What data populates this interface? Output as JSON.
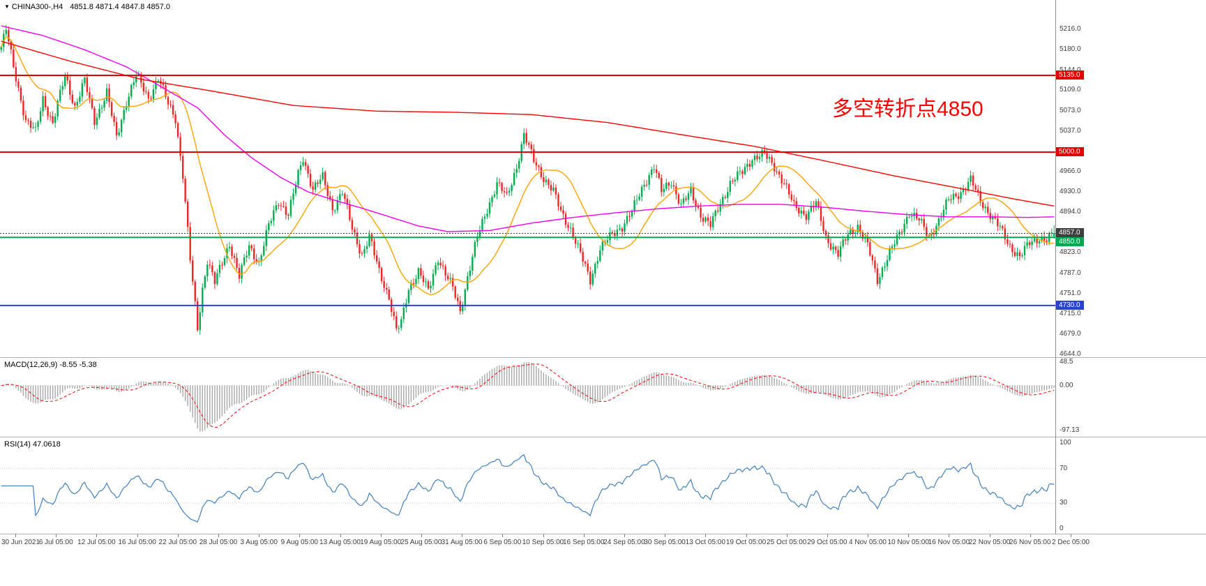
{
  "header": {
    "marker": "▼",
    "symbol": "CHINA300-,H4",
    "ohlc": "4851.8 4871.4 4847.8 4857.0"
  },
  "annotation": {
    "text": "多空转折点4850",
    "color": "#ff0000"
  },
  "price_axis": {
    "labels": [
      "5216.0",
      "5180.0",
      "5144.0",
      "5109.0",
      "5073.0",
      "5037.0",
      "4966.0",
      "4930.0",
      "4894.0",
      "4823.0",
      "4787.0",
      "4751.0",
      "4715.0",
      "4679.0",
      "4644.0"
    ]
  },
  "time_axis": {
    "labels": [
      "30 Jun 2021",
      "6 Jul 05:00",
      "12 Jul 05:00",
      "16 Jul 05:00",
      "22 Jul 05:00",
      "28 Jul 05:00",
      "3 Aug 05:00",
      "9 Aug 05:00",
      "13 Aug 05:00",
      "19 Aug 05:00",
      "25 Aug 05:00",
      "31 Aug 05:00",
      "6 Sep 05:00",
      "10 Sep 05:00",
      "16 Sep 05:00",
      "24 Sep 05:00",
      "30 Sep 05:00",
      "13 Oct 05:00",
      "19 Oct 05:00",
      "25 Oct 05:00",
      "29 Oct 05:00",
      "4 Nov 05:00",
      "10 Nov 05:00",
      "16 Nov 05:00",
      "22 Nov 05:00",
      "26 Nov 05:00",
      "2 Dec 05:00"
    ]
  },
  "macd": {
    "label": "MACD(12,26,9)",
    "values_text": "-8.55 -5.38",
    "axis": [
      "48.5",
      "0.00",
      "-97.13"
    ],
    "range": {
      "max": 48.5,
      "min": -97.13
    },
    "histogram_color": "#a8a8a8",
    "signal_color": "#ff0000"
  },
  "rsi": {
    "label": "RSI(14)",
    "value_text": "47.0618",
    "axis": [
      "100",
      "70",
      "30",
      "0"
    ],
    "levels": [
      70,
      30
    ],
    "color": "#4080c0"
  },
  "chart_data": {
    "type": "candlestick",
    "symbol": "CHINA300-",
    "timeframe": "H4",
    "title": "CHINA300-,H4",
    "x_range": [
      "30 Jun 2021",
      "2 Dec 05:00"
    ],
    "y_range": [
      4644,
      5216
    ],
    "candle_count": 430,
    "wiggle": 6,
    "last_close": 4857.0,
    "current_bar": {
      "open": 4851.8,
      "high": 4871.4,
      "low": 4847.8,
      "close": 4857.0
    },
    "up_color": "#00ad4e",
    "down_color": "#ee2524",
    "close_anchors": [
      [
        0,
        5185
      ],
      [
        2,
        5215
      ],
      [
        5,
        5150
      ],
      [
        10,
        5055
      ],
      [
        14,
        5035
      ],
      [
        17,
        5095
      ],
      [
        21,
        5050
      ],
      [
        26,
        5135
      ],
      [
        30,
        5080
      ],
      [
        34,
        5125
      ],
      [
        38,
        5055
      ],
      [
        43,
        5105
      ],
      [
        47,
        5025
      ],
      [
        51,
        5090
      ],
      [
        55,
        5135
      ],
      [
        60,
        5095
      ],
      [
        64,
        5130
      ],
      [
        68,
        5085
      ],
      [
        71,
        5060
      ],
      [
        74,
        4960
      ],
      [
        77,
        4810
      ],
      [
        80,
        4690
      ],
      [
        82,
        4760
      ],
      [
        84,
        4810
      ],
      [
        87,
        4770
      ],
      [
        90,
        4805
      ],
      [
        93,
        4840
      ],
      [
        97,
        4780
      ],
      [
        101,
        4835
      ],
      [
        105,
        4805
      ],
      [
        109,
        4870
      ],
      [
        113,
        4915
      ],
      [
        117,
        4890
      ],
      [
        121,
        4960
      ],
      [
        123,
        4990
      ],
      [
        127,
        4935
      ],
      [
        131,
        4955
      ],
      [
        135,
        4900
      ],
      [
        139,
        4930
      ],
      [
        143,
        4865
      ],
      [
        147,
        4820
      ],
      [
        150,
        4850
      ],
      [
        154,
        4790
      ],
      [
        158,
        4745
      ],
      [
        161,
        4685
      ],
      [
        163,
        4700
      ],
      [
        166,
        4760
      ],
      [
        170,
        4790
      ],
      [
        174,
        4755
      ],
      [
        178,
        4815
      ],
      [
        181,
        4785
      ],
      [
        184,
        4760
      ],
      [
        187,
        4720
      ],
      [
        190,
        4780
      ],
      [
        194,
        4850
      ],
      [
        198,
        4900
      ],
      [
        202,
        4945
      ],
      [
        206,
        4920
      ],
      [
        210,
        4975
      ],
      [
        213,
        5030
      ],
      [
        217,
        4985
      ],
      [
        221,
        4955
      ],
      [
        225,
        4930
      ],
      [
        228,
        4895
      ],
      [
        232,
        4865
      ],
      [
        236,
        4820
      ],
      [
        240,
        4775
      ],
      [
        244,
        4830
      ],
      [
        249,
        4855
      ],
      [
        253,
        4870
      ],
      [
        257,
        4895
      ],
      [
        262,
        4945
      ],
      [
        266,
        4975
      ],
      [
        269,
        4930
      ],
      [
        273,
        4950
      ],
      [
        277,
        4905
      ],
      [
        281,
        4930
      ],
      [
        285,
        4890
      ],
      [
        289,
        4870
      ],
      [
        293,
        4910
      ],
      [
        297,
        4945
      ],
      [
        302,
        4965
      ],
      [
        306,
        4990
      ],
      [
        311,
        4995
      ],
      [
        315,
        4975
      ],
      [
        319,
        4945
      ],
      [
        323,
        4905
      ],
      [
        328,
        4890
      ],
      [
        332,
        4910
      ],
      [
        336,
        4850
      ],
      [
        341,
        4820
      ],
      [
        345,
        4855
      ],
      [
        349,
        4870
      ],
      [
        353,
        4835
      ],
      [
        357,
        4775
      ],
      [
        361,
        4815
      ],
      [
        366,
        4855
      ],
      [
        370,
        4895
      ],
      [
        374,
        4880
      ],
      [
        378,
        4850
      ],
      [
        382,
        4880
      ],
      [
        386,
        4915
      ],
      [
        391,
        4930
      ],
      [
        395,
        4950
      ],
      [
        399,
        4915
      ],
      [
        403,
        4890
      ],
      [
        407,
        4865
      ],
      [
        411,
        4835
      ],
      [
        415,
        4815
      ],
      [
        419,
        4840
      ],
      [
        423,
        4850
      ],
      [
        426,
        4845
      ],
      [
        429,
        4857
      ]
    ],
    "overlays": [
      {
        "name": "ma-fast",
        "color": "#ffa200",
        "type": "sma",
        "period": 21
      },
      {
        "name": "ma-mid",
        "color": "#f000f0",
        "type": "path",
        "anchors": [
          [
            0,
            5222
          ],
          [
            17,
            5205
          ],
          [
            34,
            5180
          ],
          [
            51,
            5150
          ],
          [
            68,
            5108
          ],
          [
            80,
            5078
          ],
          [
            91,
            5030
          ],
          [
            102,
            4990
          ],
          [
            114,
            4955
          ],
          [
            125,
            4930
          ],
          [
            136,
            4915
          ],
          [
            148,
            4900
          ],
          [
            159,
            4885
          ],
          [
            170,
            4870
          ],
          [
            182,
            4860
          ],
          [
            199,
            4862
          ],
          [
            216,
            4875
          ],
          [
            233,
            4885
          ],
          [
            250,
            4893
          ],
          [
            267,
            4900
          ],
          [
            284,
            4905
          ],
          [
            301,
            4908
          ],
          [
            318,
            4908
          ],
          [
            335,
            4903
          ],
          [
            352,
            4896
          ],
          [
            369,
            4890
          ],
          [
            386,
            4886
          ],
          [
            403,
            4886
          ],
          [
            418,
            4885
          ],
          [
            429,
            4886
          ]
        ]
      },
      {
        "name": "ma-slow",
        "color": "#ff0000",
        "type": "path",
        "anchors": [
          [
            0,
            5195
          ],
          [
            28,
            5160
          ],
          [
            57,
            5128
          ],
          [
            85,
            5108
          ],
          [
            119,
            5082
          ],
          [
            153,
            5072
          ],
          [
            185,
            5070
          ],
          [
            216,
            5066
          ],
          [
            247,
            5052
          ],
          [
            278,
            5030
          ],
          [
            307,
            5010
          ],
          [
            335,
            4985
          ],
          [
            364,
            4958
          ],
          [
            392,
            4935
          ],
          [
            412,
            4918
          ],
          [
            429,
            4905
          ]
        ]
      }
    ],
    "hlines": [
      {
        "price": 5135.0,
        "label": "5135.0",
        "color": "#e00000",
        "width": 2
      },
      {
        "price": 5000.0,
        "label": "5000.0",
        "color": "#e00000",
        "width": 2
      },
      {
        "price": 4857.0,
        "label": "4857.0",
        "color": "#3f3f3f",
        "width": 1,
        "style": "dotted"
      },
      {
        "price": 4850.0,
        "label": "4850.0",
        "color": "#00a84f",
        "width": 2
      },
      {
        "price": 4730.0,
        "label": "4730.0",
        "color": "#2743d0",
        "width": 2
      }
    ],
    "indicators": [
      {
        "type": "macd",
        "fast": 12,
        "slow": 26,
        "signal": 9,
        "current_main": -8.55,
        "current_signal": -5.38
      },
      {
        "type": "rsi",
        "period": 14,
        "current": 47.0618
      }
    ]
  }
}
